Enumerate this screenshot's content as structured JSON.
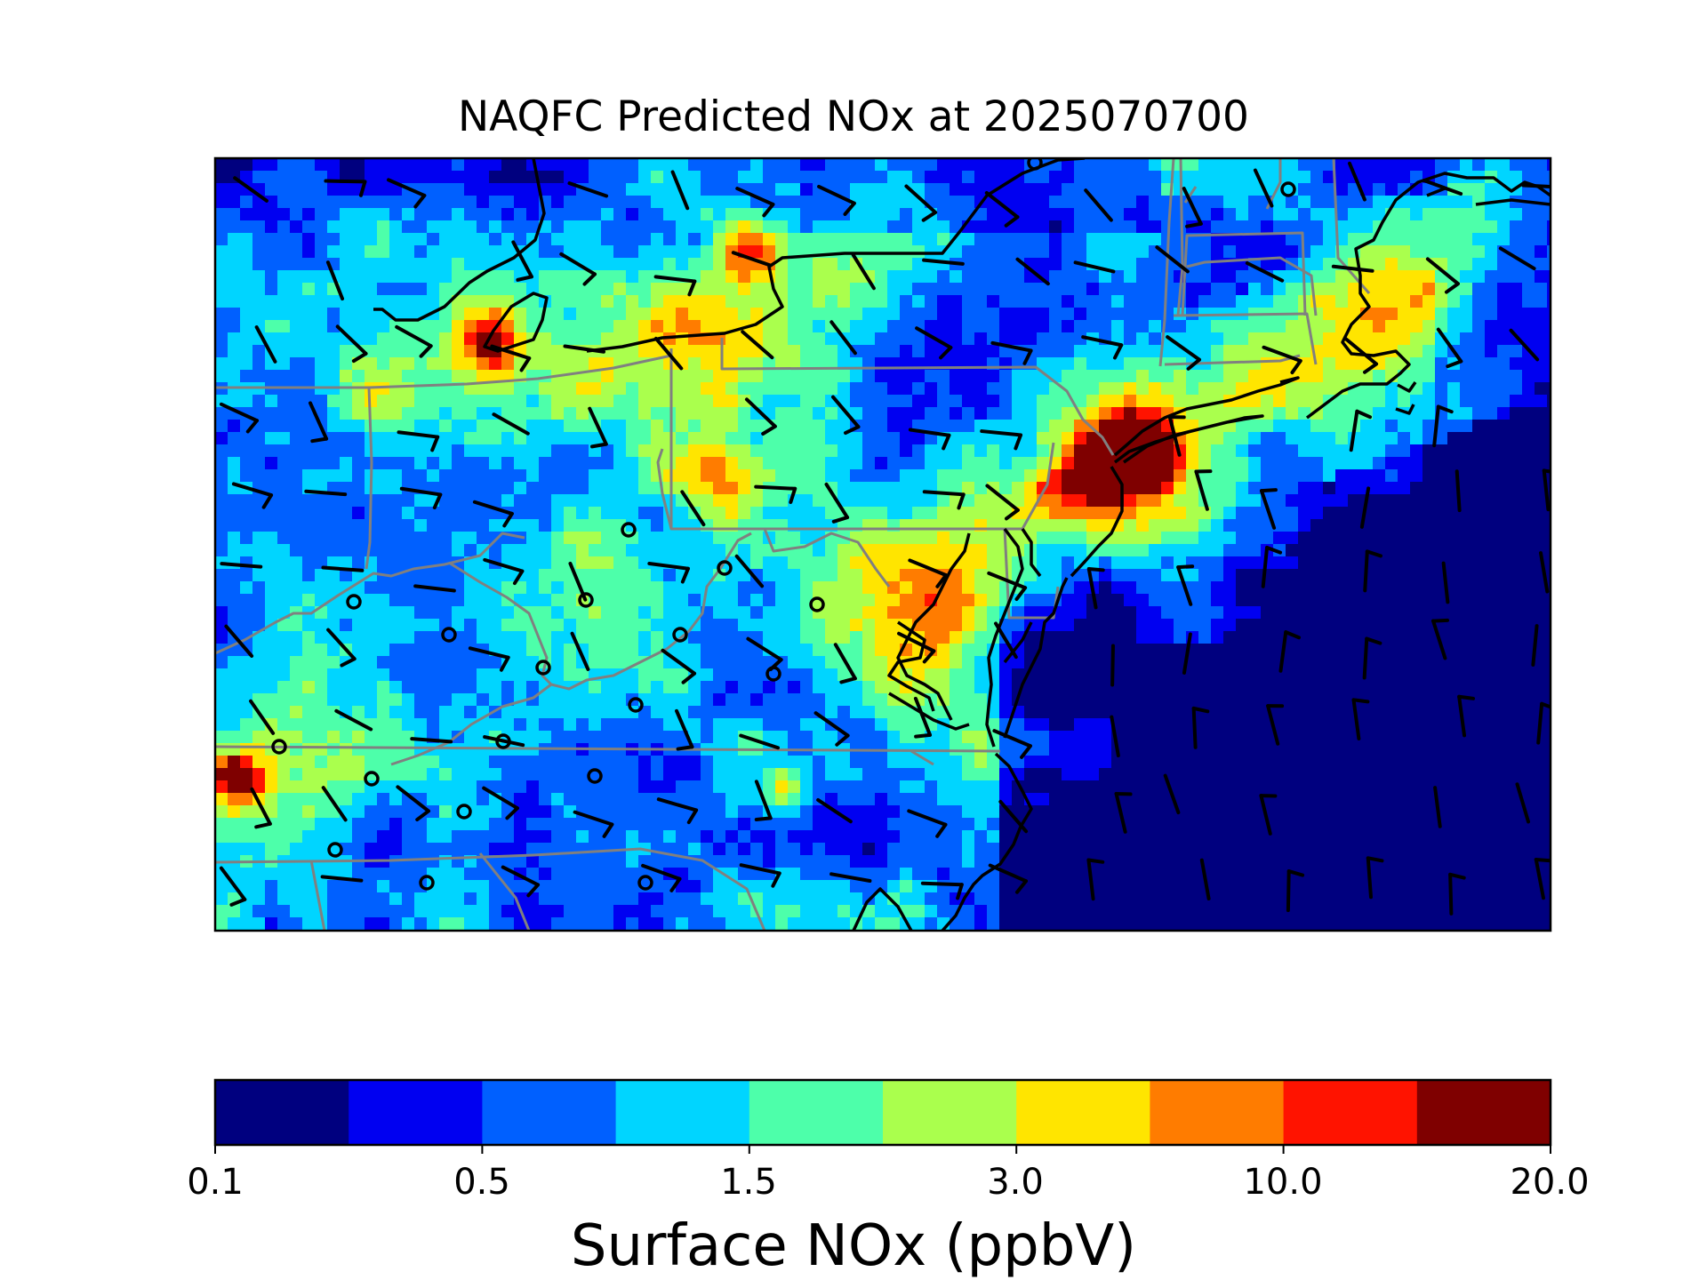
{
  "title": "NAQFC Predicted NOx at 2025070700",
  "colorbar": {
    "label": "Surface NOx (ppbV)",
    "ticks": [
      "0.1",
      "0.5",
      "1.5",
      "3.0",
      "10.0",
      "20.0"
    ],
    "colors": [
      "#00007f",
      "#0000f1",
      "#0060ff",
      "#00d5ff",
      "#4dffaa",
      "#aaff4d",
      "#ffe500",
      "#ff7c00",
      "#ff1300",
      "#7f0000"
    ]
  },
  "map": {
    "domain": "Northeastern / Mid-Atlantic United States",
    "layers": [
      "surface-nox-field",
      "state-borders",
      "coastlines",
      "wind-barbs",
      "station-markers"
    ],
    "state_border_color": "#808080",
    "coastline_color": "#000000"
  }
}
